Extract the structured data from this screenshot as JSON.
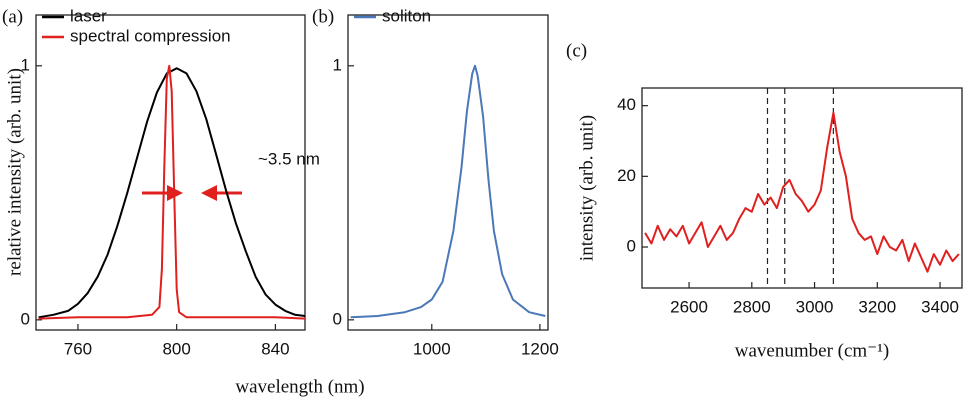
{
  "chart_data": [
    {
      "type": "line",
      "title": "(a)",
      "xlabel": "wavelength (nm)",
      "ylabel": "relative intensity (arb. unit)",
      "xlim": [
        743,
        852
      ],
      "ylim": [
        -0.04,
        1.2
      ],
      "xticks": [
        760,
        800,
        840
      ],
      "yticks": [
        0,
        1
      ],
      "legend": "upper left",
      "annotation": "~3.5 nm",
      "series": [
        {
          "name": "laser",
          "color": "#000000",
          "x": [
            744,
            750,
            756,
            760,
            764,
            768,
            772,
            776,
            780,
            784,
            788,
            792,
            796,
            800,
            804,
            808,
            812,
            816,
            820,
            824,
            828,
            832,
            836,
            840,
            844,
            848,
            852
          ],
          "values": [
            0.01,
            0.02,
            0.035,
            0.063,
            0.106,
            0.17,
            0.257,
            0.37,
            0.5,
            0.64,
            0.78,
            0.895,
            0.97,
            0.99,
            0.97,
            0.9,
            0.79,
            0.65,
            0.51,
            0.38,
            0.27,
            0.17,
            0.1,
            0.06,
            0.035,
            0.02,
            0.015
          ]
        },
        {
          "name": "spectral compression",
          "color": "#e0201f",
          "x": [
            744,
            760,
            780,
            790,
            793,
            794,
            795,
            796,
            797,
            798,
            799,
            800,
            801,
            804,
            820,
            840,
            852
          ],
          "values": [
            0.005,
            0.01,
            0.01,
            0.02,
            0.05,
            0.2,
            0.6,
            0.95,
            1.0,
            0.9,
            0.5,
            0.12,
            0.03,
            0.01,
            0.01,
            0.01,
            0.005
          ]
        }
      ]
    },
    {
      "type": "line",
      "title": "(b)",
      "xlim": [
        845,
        1215
      ],
      "ylim": [
        -0.04,
        1.2
      ],
      "xticks": [
        1000,
        1200
      ],
      "yticks": [
        0,
        1
      ],
      "legend": "upper left",
      "series": [
        {
          "name": "soliton",
          "color": "#4a78b8",
          "x": [
            850,
            900,
            950,
            980,
            1000,
            1020,
            1040,
            1055,
            1065,
            1075,
            1080,
            1085,
            1095,
            1105,
            1115,
            1130,
            1150,
            1180,
            1210
          ],
          "values": [
            0.01,
            0.015,
            0.03,
            0.05,
            0.08,
            0.15,
            0.35,
            0.6,
            0.82,
            0.97,
            1.0,
            0.96,
            0.8,
            0.55,
            0.35,
            0.18,
            0.08,
            0.03,
            0.015
          ]
        }
      ]
    },
    {
      "type": "line",
      "title": "(c)",
      "xlabel": "wavenumber (cm⁻¹)",
      "ylabel": "intensity (arb. unit)",
      "xlim": [
        2450,
        3470
      ],
      "ylim": [
        -11.6,
        45
      ],
      "xticks": [
        2600,
        2800,
        3000,
        3200,
        3400
      ],
      "yticks": [
        0,
        20,
        40
      ],
      "vlines": [
        2850,
        2905,
        3060
      ],
      "series": [
        {
          "color": "#e0201f",
          "x": [
            2460,
            2480,
            2500,
            2520,
            2540,
            2560,
            2580,
            2600,
            2620,
            2640,
            2660,
            2680,
            2700,
            2720,
            2740,
            2760,
            2780,
            2800,
            2820,
            2840,
            2860,
            2880,
            2900,
            2920,
            2940,
            2960,
            2980,
            3000,
            3020,
            3040,
            3060,
            3080,
            3100,
            3120,
            3140,
            3160,
            3180,
            3200,
            3220,
            3240,
            3260,
            3280,
            3300,
            3320,
            3340,
            3360,
            3380,
            3400,
            3420,
            3440,
            3460
          ],
          "values": [
            4,
            1,
            6,
            2,
            5,
            3,
            6,
            1,
            4,
            7,
            0,
            3,
            6,
            2,
            4,
            8,
            11,
            10,
            15,
            12,
            14,
            11,
            17,
            19,
            15,
            13,
            10,
            12,
            16,
            28,
            38,
            27,
            20,
            8,
            4,
            2,
            3,
            -2,
            3,
            0,
            -1,
            2,
            -4,
            1,
            -3,
            -7,
            -2,
            -5,
            -1,
            -4,
            -2
          ]
        }
      ]
    }
  ]
}
